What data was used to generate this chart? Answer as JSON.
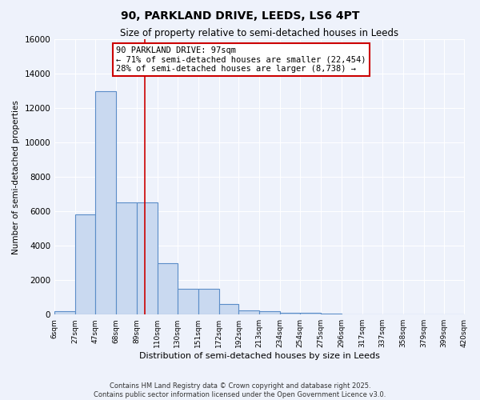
{
  "title": "90, PARKLAND DRIVE, LEEDS, LS6 4PT",
  "subtitle": "Size of property relative to semi-detached houses in Leeds",
  "xlabel": "Distribution of semi-detached houses by size in Leeds",
  "ylabel": "Number of semi-detached properties",
  "bin_edges": [
    6,
    27,
    47,
    68,
    89,
    110,
    130,
    151,
    172,
    192,
    213,
    234,
    254,
    275,
    296,
    317,
    337,
    358,
    379,
    399,
    420
  ],
  "bar_heights": [
    200,
    5800,
    13000,
    6500,
    6500,
    3000,
    1500,
    1500,
    600,
    250,
    200,
    100,
    80,
    50,
    20,
    10,
    5,
    5,
    3,
    3
  ],
  "bar_color": "#c9d9f0",
  "bar_edge_color": "#5b8dc8",
  "red_line_x": 97,
  "annotation_title": "90 PARKLAND DRIVE: 97sqm",
  "annotation_line1": "← 71% of semi-detached houses are smaller (22,454)",
  "annotation_line2": "28% of semi-detached houses are larger (8,738) →",
  "annotation_box_color": "#ffffff",
  "annotation_box_edge": "#cc0000",
  "red_line_color": "#cc0000",
  "ylim": [
    0,
    16000
  ],
  "yticks": [
    0,
    2000,
    4000,
    6000,
    8000,
    10000,
    12000,
    14000,
    16000
  ],
  "footer1": "Contains HM Land Registry data © Crown copyright and database right 2025.",
  "footer2": "Contains public sector information licensed under the Open Government Licence v3.0.",
  "bg_color": "#eef2fb",
  "grid_color": "#ffffff"
}
